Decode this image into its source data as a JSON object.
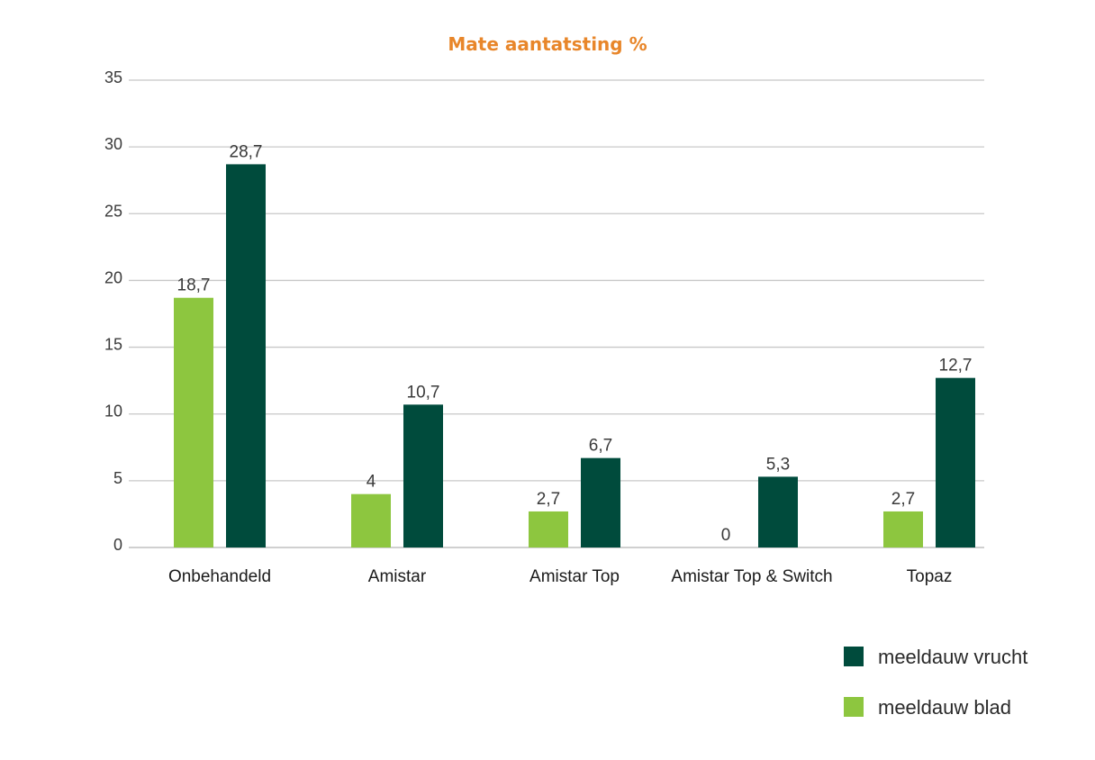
{
  "chart_data": {
    "type": "bar",
    "title": "Mate aantatsting %",
    "xlabel": "",
    "ylabel": "",
    "ylim": [
      0,
      35
    ],
    "yticks": [
      0,
      5,
      10,
      15,
      20,
      25,
      30,
      35
    ],
    "grid": true,
    "legend_position": "bottom-right",
    "categories": [
      "Onbehandeld",
      "Amistar",
      "Amistar Top",
      "Amistar Top & Switch",
      "Topaz"
    ],
    "series": [
      {
        "name": "meeldauw blad",
        "color": "#8dc63f",
        "values": [
          18.7,
          4,
          2.7,
          0,
          2.7
        ],
        "labels": [
          "18,7",
          "4",
          "2,7",
          "0",
          "2,7"
        ]
      },
      {
        "name": "meeldauw vrucht",
        "color": "#004b3c",
        "values": [
          28.7,
          10.7,
          6.7,
          5.3,
          12.7
        ],
        "labels": [
          "28,7",
          "10,7",
          "6,7",
          "5,3",
          "12,7"
        ]
      }
    ],
    "legend_order": [
      "meeldauw vrucht",
      "meeldauw blad"
    ]
  }
}
